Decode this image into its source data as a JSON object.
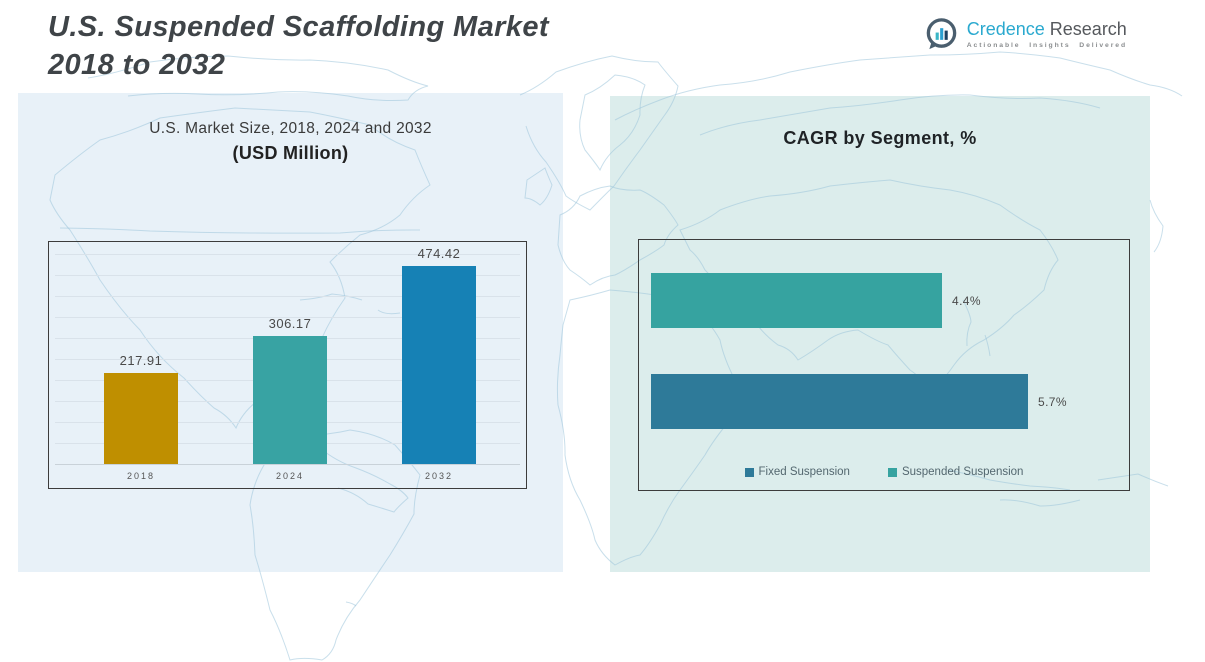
{
  "header": {
    "title_line1": "U.S. Suspended Scaffolding Market",
    "title_line2": "2018 to 2032",
    "logo": {
      "brand_primary": "Credence",
      "brand_secondary": "Research",
      "tagline": "Actionable Insights Delivered",
      "icon": "bar-chart-speech-bubble-icon",
      "brand_primary_color": "#2AA9CF",
      "brand_secondary_color": "#55585C"
    }
  },
  "chart_data": [
    {
      "type": "bar",
      "orientation": "vertical",
      "title": "U.S. Market Size, 2018, 2024 and 2032",
      "subtitle": "(USD Million)",
      "categories": [
        "2018",
        "2024",
        "2032"
      ],
      "values": [
        217.91,
        306.17,
        474.42
      ],
      "value_labels": [
        "217.91",
        "306.17",
        "474.42"
      ],
      "bar_colors": [
        "#BF8F00",
        "#38A3A3",
        "#1681B5"
      ],
      "ylim": [
        0,
        500
      ],
      "grid": true,
      "legend": null
    },
    {
      "type": "bar",
      "orientation": "horizontal",
      "title": "CAGR by Segment, %",
      "categories": [
        "Suspended Suspension",
        "Fixed Suspension"
      ],
      "values": [
        4.4,
        5.7
      ],
      "value_labels": [
        "4.4%",
        "5.7%"
      ],
      "bar_colors": [
        "#36A3A0",
        "#2E7A99"
      ],
      "xlim": [
        0,
        6.2
      ],
      "grid": false,
      "legend": [
        {
          "label": "Fixed Suspension",
          "color": "#2E7A99"
        },
        {
          "label": "Suspended Suspension",
          "color": "#36A3A0"
        }
      ],
      "legend_position": "bottom"
    }
  ]
}
